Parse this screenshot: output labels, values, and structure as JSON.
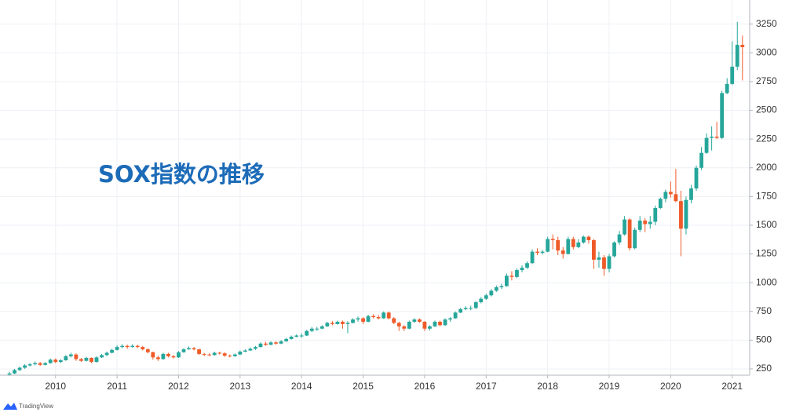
{
  "chart_data": {
    "type": "candlestick",
    "title": "SOX指数の推移",
    "watermark": "TradingView",
    "categories": [
      null,
      null,
      null,
      null,
      null,
      null,
      null,
      null,
      null,
      "2010",
      null,
      null,
      null,
      null,
      null,
      null,
      null,
      null,
      null,
      null,
      null,
      "2011",
      null,
      null,
      null,
      null,
      null,
      null,
      null,
      null,
      null,
      null,
      null,
      "2012",
      null,
      null,
      null,
      null,
      null,
      null,
      null,
      null,
      null,
      null,
      null,
      "2013",
      null,
      null,
      null,
      null,
      null,
      null,
      null,
      null,
      null,
      null,
      null,
      "2014",
      null,
      null,
      null,
      null,
      null,
      null,
      null,
      null,
      null,
      null,
      null,
      "2015",
      null,
      null,
      null,
      null,
      null,
      null,
      null,
      null,
      null,
      null,
      null,
      "2016",
      null,
      null,
      null,
      null,
      null,
      null,
      null,
      null,
      null,
      null,
      null,
      "2017",
      null,
      null,
      null,
      null,
      null,
      null,
      null,
      null,
      null,
      null,
      null,
      "2018",
      null,
      null,
      null,
      null,
      null,
      null,
      null,
      null,
      null,
      null,
      null,
      "2019",
      null,
      null,
      null,
      null,
      null,
      null,
      null,
      null,
      null,
      null,
      null,
      "2020",
      null,
      null,
      null,
      null,
      null,
      null,
      null,
      null,
      null,
      null,
      null,
      "2021",
      null,
      null
    ],
    "open": [
      200,
      210,
      240,
      260,
      280,
      290,
      300,
      285,
      300,
      330,
      310,
      325,
      360,
      375,
      335,
      320,
      345,
      310,
      350,
      370,
      390,
      415,
      440,
      450,
      440,
      450,
      440,
      420,
      395,
      350,
      335,
      380,
      360,
      350,
      395,
      420,
      430,
      420,
      380,
      375,
      370,
      390,
      385,
      365,
      360,
      375,
      400,
      410,
      425,
      440,
      470,
      460,
      480,
      470,
      490,
      510,
      530,
      540,
      540,
      580,
      600,
      600,
      620,
      650,
      640,
      660,
      640,
      650,
      680,
      690,
      660,
      710,
      700,
      690,
      740,
      690,
      650,
      620,
      600,
      660,
      680,
      660,
      600,
      620,
      660,
      630,
      680,
      690,
      740,
      770,
      780,
      780,
      830,
      860,
      890,
      930,
      960,
      970,
      1060,
      1050,
      1110,
      1130,
      1170,
      1270,
      1260,
      1270,
      1380,
      1370,
      1280,
      1250,
      1380,
      1310,
      1350,
      1400,
      1370,
      1200,
      1220,
      1120,
      1230,
      1350,
      1420,
      1550,
      1300,
      1460,
      1540,
      1510,
      1530,
      1650,
      1730,
      1790,
      1770,
      1710,
      1470,
      1720,
      1820,
      2000,
      2130,
      2260,
      2270,
      2260,
      2650,
      2730,
      2880,
      3070
    ],
    "high": [
      225,
      250,
      270,
      290,
      300,
      315,
      310,
      310,
      340,
      340,
      335,
      370,
      390,
      385,
      345,
      355,
      350,
      360,
      380,
      400,
      425,
      455,
      465,
      460,
      465,
      460,
      450,
      430,
      400,
      365,
      390,
      390,
      370,
      405,
      430,
      445,
      440,
      425,
      390,
      385,
      400,
      400,
      395,
      375,
      385,
      410,
      420,
      435,
      450,
      480,
      485,
      490,
      490,
      500,
      520,
      540,
      550,
      560,
      590,
      615,
      615,
      630,
      660,
      665,
      670,
      670,
      665,
      690,
      705,
      700,
      720,
      725,
      720,
      750,
      750,
      700,
      660,
      630,
      670,
      690,
      690,
      665,
      630,
      670,
      670,
      690,
      700,
      750,
      780,
      795,
      800,
      840,
      875,
      905,
      945,
      975,
      990,
      1080,
      1100,
      1125,
      1150,
      1185,
      1290,
      1300,
      1285,
      1400,
      1420,
      1400,
      1310,
      1400,
      1400,
      1380,
      1410,
      1410,
      1380,
      1270,
      1240,
      1250,
      1360,
      1450,
      1580,
      1560,
      1480,
      1580,
      1560,
      1580,
      1670,
      1740,
      1810,
      1880,
      1990,
      1800,
      1750,
      1850,
      2020,
      2180,
      2300,
      2360,
      2400,
      2670,
      2780,
      3100,
      3270,
      3150
    ],
    "low": [
      190,
      205,
      230,
      250,
      270,
      280,
      275,
      280,
      295,
      300,
      300,
      320,
      350,
      320,
      310,
      315,
      300,
      305,
      345,
      360,
      385,
      410,
      430,
      425,
      435,
      430,
      410,
      385,
      330,
      320,
      330,
      350,
      340,
      345,
      390,
      415,
      410,
      370,
      360,
      360,
      365,
      375,
      355,
      350,
      355,
      370,
      395,
      405,
      415,
      435,
      450,
      455,
      460,
      465,
      485,
      505,
      525,
      520,
      535,
      570,
      580,
      595,
      615,
      630,
      635,
      600,
      560,
      645,
      660,
      640,
      655,
      690,
      680,
      685,
      680,
      640,
      580,
      580,
      595,
      650,
      650,
      580,
      585,
      615,
      620,
      625,
      660,
      685,
      735,
      760,
      760,
      770,
      820,
      850,
      880,
      920,
      945,
      965,
      1020,
      1040,
      1090,
      1120,
      1165,
      1240,
      1245,
      1265,
      1290,
      1240,
      1210,
      1245,
      1290,
      1300,
      1340,
      1340,
      1120,
      1130,
      1060,
      1090,
      1220,
      1330,
      1410,
      1280,
      1290,
      1440,
      1440,
      1470,
      1500,
      1640,
      1700,
      1740,
      1700,
      1230,
      1420,
      1690,
      1800,
      1980,
      2120,
      2150,
      2250,
      2250,
      2640,
      2720,
      2850,
      2760
    ],
    "close": [
      210,
      240,
      260,
      280,
      290,
      300,
      285,
      300,
      330,
      310,
      325,
      360,
      375,
      335,
      320,
      345,
      310,
      350,
      370,
      390,
      415,
      440,
      450,
      440,
      450,
      440,
      420,
      395,
      350,
      335,
      380,
      360,
      350,
      395,
      420,
      430,
      420,
      380,
      375,
      370,
      390,
      385,
      365,
      360,
      375,
      400,
      410,
      425,
      440,
      470,
      460,
      480,
      470,
      490,
      510,
      530,
      540,
      540,
      580,
      600,
      600,
      620,
      650,
      640,
      660,
      640,
      650,
      680,
      690,
      660,
      710,
      700,
      690,
      740,
      690,
      650,
      620,
      600,
      660,
      680,
      660,
      600,
      620,
      660,
      630,
      680,
      690,
      740,
      770,
      780,
      780,
      830,
      860,
      890,
      930,
      960,
      970,
      1060,
      1050,
      1110,
      1130,
      1170,
      1270,
      1260,
      1270,
      1380,
      1370,
      1280,
      1250,
      1380,
      1310,
      1350,
      1400,
      1370,
      1200,
      1220,
      1120,
      1230,
      1350,
      1420,
      1550,
      1300,
      1460,
      1540,
      1510,
      1530,
      1650,
      1730,
      1790,
      1770,
      1710,
      1470,
      1720,
      1820,
      2000,
      2130,
      2260,
      2270,
      2260,
      2650,
      2730,
      2880,
      3070,
      3050
    ],
    "up_color": "#26a69a",
    "down_color": "#ef5a28",
    "ylim": [
      195,
      3460
    ],
    "yticks": [
      250,
      500,
      750,
      1000,
      1250,
      1500,
      1750,
      2000,
      2250,
      2500,
      2750,
      3000,
      3250
    ],
    "grid": true
  }
}
